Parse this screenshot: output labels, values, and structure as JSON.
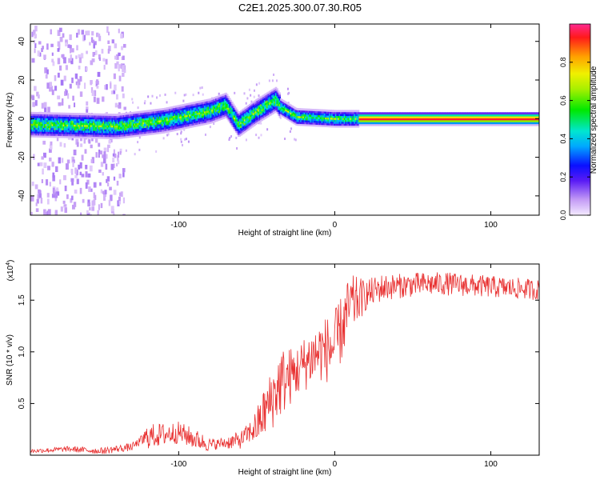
{
  "title": "C2E1.2025.300.07.30.R05",
  "chart_data": [
    {
      "type": "heatmap",
      "name": "spectrogram",
      "xlabel": "Height of straight line (km)",
      "ylabel": "Frequency (Hz)",
      "xlim": [
        -195,
        131
      ],
      "ylim": [
        -50,
        49
      ],
      "x_ticks": [
        -100,
        0,
        100
      ],
      "y_ticks": [
        -40,
        -20,
        0,
        20,
        40
      ],
      "colorbar": {
        "label": "Normalized spectral amplitude",
        "range": [
          0,
          1
        ],
        "ticks": [
          0.0,
          0.2,
          0.4,
          0.6,
          0.8
        ],
        "tick_labels": [
          "0.0",
          "0.2",
          "0.4",
          "0.6",
          "0.8"
        ]
      },
      "ridge": {
        "description_points": [
          {
            "x": -195,
            "freq": -3
          },
          {
            "x": -140,
            "freq": -4
          },
          {
            "x": -110,
            "freq": -1
          },
          {
            "x": -80,
            "freq": 4
          },
          {
            "x": -70,
            "freq": 7
          },
          {
            "x": -62,
            "freq": -3
          },
          {
            "x": -50,
            "freq": 4
          },
          {
            "x": -38,
            "freq": 10
          },
          {
            "x": -35,
            "freq": 6
          },
          {
            "x": -25,
            "freq": 1
          },
          {
            "x": 0,
            "freq": 0
          },
          {
            "x": 10,
            "freq": 0
          },
          {
            "x": 131,
            "freq": 0
          }
        ]
      }
    },
    {
      "type": "line",
      "name": "snr",
      "xlabel": "Height of straight line (km)",
      "ylabel": "SNR (10 * v/v)",
      "y_scale_label": "(x10",
      "y_scale_exponent": "4",
      "y_scale_suffix": ")",
      "xlim": [
        -195,
        131
      ],
      "ylim": [
        0,
        1.85
      ],
      "x_ticks": [
        -100,
        0,
        100
      ],
      "y_ticks": [
        0.5,
        1.0,
        1.5
      ],
      "y_tick_labels": [
        "0.5",
        "1.0",
        "1.5"
      ],
      "series": [
        {
          "name": "SNR",
          "color": "#e83030",
          "points": [
            [
              -195,
              0.04
            ],
            [
              -170,
              0.06
            ],
            [
              -150,
              0.04
            ],
            [
              -130,
              0.08
            ],
            [
              -120,
              0.18
            ],
            [
              -100,
              0.22
            ],
            [
              -90,
              0.16
            ],
            [
              -80,
              0.1
            ],
            [
              -70,
              0.12
            ],
            [
              -60,
              0.15
            ],
            [
              -50,
              0.28
            ],
            [
              -40,
              0.55
            ],
            [
              -35,
              0.7
            ],
            [
              -25,
              0.8
            ],
            [
              -15,
              0.95
            ],
            [
              -10,
              1.0
            ],
            [
              0,
              1.05
            ],
            [
              5,
              1.25
            ],
            [
              10,
              1.45
            ],
            [
              20,
              1.55
            ],
            [
              30,
              1.62
            ],
            [
              50,
              1.65
            ],
            [
              70,
              1.66
            ],
            [
              100,
              1.63
            ],
            [
              131,
              1.6
            ]
          ],
          "noise_amplitude": [
            [
              -195,
              0.02
            ],
            [
              -125,
              0.04
            ],
            [
              -120,
              0.12
            ],
            [
              -90,
              0.1
            ],
            [
              -75,
              0.05
            ],
            [
              -55,
              0.1
            ],
            [
              -45,
              0.25
            ],
            [
              -35,
              0.35
            ],
            [
              -25,
              0.25
            ],
            [
              -10,
              0.3
            ],
            [
              0,
              0.35
            ],
            [
              10,
              0.3
            ],
            [
              20,
              0.15
            ],
            [
              40,
              0.12
            ],
            [
              131,
              0.1
            ]
          ]
        }
      ]
    }
  ]
}
